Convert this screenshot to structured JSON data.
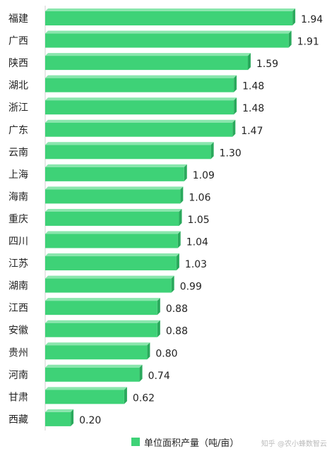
{
  "chart_data": {
    "type": "bar",
    "orientation": "horizontal",
    "categories": [
      "福建",
      "广西",
      "陕西",
      "湖北",
      "浙江",
      "广东",
      "云南",
      "上海",
      "海南",
      "重庆",
      "四川",
      "江苏",
      "湖南",
      "江西",
      "安徽",
      "贵州",
      "河南",
      "甘肃",
      "西藏"
    ],
    "series": [
      {
        "name": "单位面积产量（吨/亩）",
        "values": [
          1.94,
          1.91,
          1.59,
          1.48,
          1.48,
          1.47,
          1.3,
          1.09,
          1.06,
          1.05,
          1.04,
          1.03,
          0.99,
          0.88,
          0.88,
          0.8,
          0.74,
          0.62,
          0.2
        ]
      }
    ],
    "value_labels": [
      "1.94",
      "1.91",
      "1.59",
      "1.48",
      "1.48",
      "1.47",
      "1.30",
      "1.09",
      "1.06",
      "1.05",
      "1.04",
      "1.03",
      "0.99",
      "0.88",
      "0.88",
      "0.80",
      "0.74",
      "0.62",
      "0.20"
    ],
    "xlim": [
      0,
      2.0
    ],
    "grid": false,
    "legend_position": "bottom",
    "bar_color": "#3ed277",
    "bar_side_color": "#2aa95c",
    "bar_top_color": "#8ae6ad"
  },
  "watermark": "知乎 @农小蜂数智云"
}
